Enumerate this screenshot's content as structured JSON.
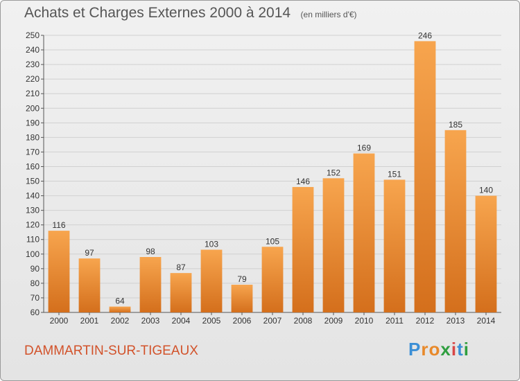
{
  "title": "Achats et Charges Externes 2000 à 2014",
  "subtitle": "(en milliers d'€)",
  "commune": "DAMMARTIN-SUR-TIGEAUX",
  "logo": {
    "letters": [
      "P",
      "r",
      "o",
      "x",
      "i",
      "t",
      "i"
    ],
    "colors": [
      "#3b8fd6",
      "#e8892a",
      "#e8892a",
      "#2f9e3f",
      "#d84646",
      "#3b8fd6",
      "#2f9e3f"
    ]
  },
  "colors": {
    "bar_light": "#f7a54e",
    "bar_dark": "#d46f1c",
    "grid": "#d0d0d0",
    "axis_text": "#333333",
    "commune": "#d2522a"
  },
  "chart_data": {
    "type": "bar",
    "categories": [
      "2000",
      "2001",
      "2002",
      "2003",
      "2004",
      "2005",
      "2006",
      "2007",
      "2008",
      "2009",
      "2010",
      "2011",
      "2012",
      "2013",
      "2014"
    ],
    "values": [
      116,
      97,
      64,
      98,
      87,
      103,
      79,
      105,
      146,
      152,
      169,
      151,
      246,
      185,
      140
    ],
    "ylim": [
      60,
      250
    ],
    "ytick_step": 10,
    "grid": true,
    "data_labels": true
  }
}
